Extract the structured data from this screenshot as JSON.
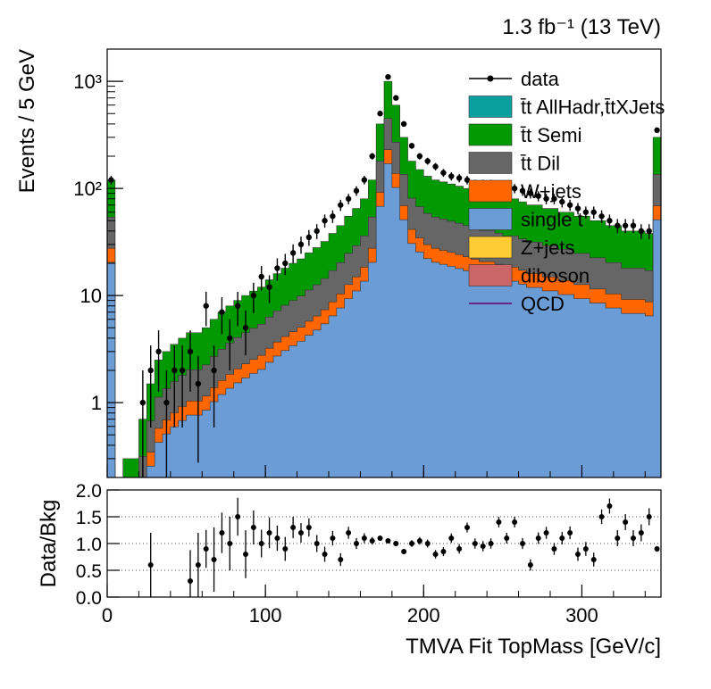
{
  "lumi_label": "1.3 fb⁻¹ (13 TeV)",
  "chart_data": [
    {
      "type": "area",
      "ylabel": "Events / 5 GeV",
      "xlim": [
        0,
        350
      ],
      "ylim": [
        0.2,
        2000
      ],
      "y_scale": "log",
      "y_ticks": [
        {
          "v": 1,
          "label": "1"
        },
        {
          "v": 10,
          "label": "10"
        },
        {
          "v": 100,
          "label": "10²"
        },
        {
          "v": 1000,
          "label": "10³"
        }
      ],
      "legend": [
        "data",
        "t̄t AllHadr,t̄tXJets",
        "t̄t Semi",
        "t̄t Dil",
        "W+jets",
        "single t",
        "Z+jets",
        "diboson",
        "QCD"
      ],
      "legend_position": "top-right",
      "colors": {
        "tt_allhadr": "#0aa0a0",
        "tt_semi": "#009900",
        "tt_dil": "#666666",
        "wjets": "#ff6600",
        "single_t": "#6b9cd5",
        "zjets": "#ffcc33",
        "diboson": "#cc6666",
        "qcd": "#660066",
        "data": "#000000"
      },
      "bin_width": 5,
      "bin_low_edges": [
        0,
        5,
        10,
        15,
        20,
        25,
        30,
        35,
        40,
        45,
        50,
        55,
        60,
        65,
        70,
        75,
        80,
        85,
        90,
        95,
        100,
        105,
        110,
        115,
        120,
        125,
        130,
        135,
        140,
        145,
        150,
        155,
        160,
        165,
        170,
        175,
        180,
        185,
        190,
        195,
        200,
        205,
        210,
        215,
        220,
        225,
        230,
        235,
        240,
        245,
        250,
        255,
        260,
        265,
        270,
        275,
        280,
        285,
        290,
        295,
        300,
        305,
        310,
        315,
        320,
        325,
        330,
        335,
        340,
        345
      ],
      "data": [
        120,
        null,
        null,
        null,
        1,
        2,
        3,
        1,
        2,
        2,
        3,
        1.5,
        8,
        2,
        7,
        4,
        8,
        5,
        10,
        15,
        12,
        18,
        20,
        25,
        30,
        35,
        40,
        50,
        55,
        70,
        80,
        95,
        120,
        200,
        500,
        1100,
        700,
        400,
        250,
        200,
        180,
        160,
        140,
        130,
        125,
        120,
        110,
        110,
        110,
        105,
        100,
        100,
        95,
        90,
        85,
        80,
        80,
        75,
        70,
        65,
        60,
        60,
        55,
        50,
        45,
        45,
        45,
        40,
        40,
        350
      ],
      "stack_totals": [
        120,
        0.2,
        0.3,
        0.3,
        0.7,
        1.5,
        2.5,
        3,
        3.5,
        4,
        4.5,
        4.5,
        5,
        6,
        7,
        8,
        9,
        10,
        11,
        12,
        14,
        16,
        18,
        20,
        22,
        25,
        28,
        32,
        38,
        45,
        55,
        65,
        80,
        120,
        400,
        1000,
        600,
        300,
        180,
        150,
        130,
        120,
        115,
        110,
        105,
        100,
        95,
        90,
        90,
        85,
        80,
        80,
        75,
        70,
        70,
        65,
        65,
        60,
        60,
        55,
        55,
        50,
        50,
        45,
        45,
        40,
        40,
        40,
        38,
        300
      ],
      "data_mc_ratio": [
        null,
        null,
        null,
        null,
        null,
        0.6,
        null,
        null,
        null,
        null,
        0.3,
        0.6,
        0.9,
        0.7,
        1.2,
        1.0,
        1.5,
        0.8,
        1.3,
        1.0,
        1.2,
        1.1,
        0.9,
        1.3,
        1.2,
        1.3,
        1.0,
        0.8,
        1.1,
        0.7,
        1.2,
        1.0,
        1.1,
        1.05,
        1.1,
        1.05,
        1.0,
        0.85,
        1.0,
        1.05,
        1.0,
        0.8,
        0.85,
        1.1,
        0.9,
        1.3,
        1.0,
        0.95,
        1.0,
        1.4,
        1.1,
        1.4,
        1.0,
        0.6,
        1.1,
        1.2,
        0.9,
        1.1,
        1.2,
        0.8,
        0.9,
        0.7,
        1.5,
        1.7,
        1.1,
        1.4,
        1.1,
        1.2,
        1.5,
        0.9
      ]
    },
    {
      "type": "scatter",
      "xlabel": "TMVA Fit TopMass [GeV/c]",
      "ylabel": "Data/Bkg",
      "xlim": [
        0,
        350
      ],
      "ylim": [
        0,
        2
      ],
      "x_ticks": [
        "0",
        "100",
        "200",
        "300"
      ],
      "y_ticks": [
        "0.0",
        "0.5",
        "1.0",
        "1.5",
        "2.0"
      ]
    }
  ]
}
